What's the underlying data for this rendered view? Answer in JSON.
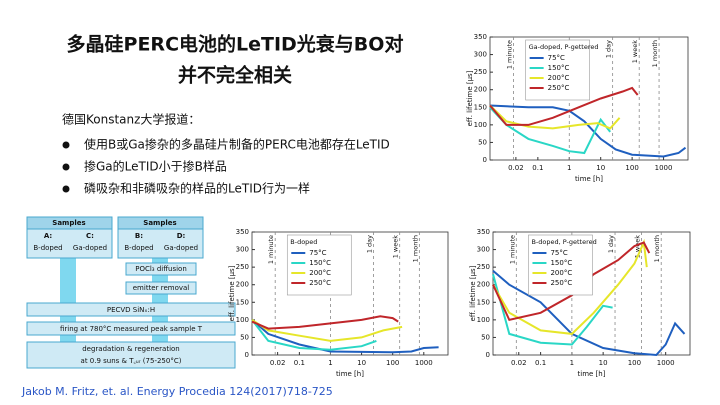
{
  "title_lines": [
    "多晶硅PERC电池的LeTID光衰与BO对",
    "并不完全相关"
  ],
  "intro": "德国Konstanz大学报道：",
  "bullets": [
    "使用B或Ga掺杂的多晶硅片制备的PERC电池都存在LeTID",
    "掺Ga的LeTID小于掺B样品",
    "磷吸杂和非磷吸杂的样品的LeTID行为一样"
  ],
  "source": "Jakob M. Fritz, et. al. Energy Procedia 124(2017)718-725",
  "flowchart": {
    "groups": [
      {
        "title": "Samples",
        "left": "A:",
        "right": "C:",
        "left_sub": "B-doped",
        "right_sub": "Ga-doped"
      },
      {
        "title": "Samples",
        "left": "B:",
        "right": "D:",
        "left_sub": "B-doped",
        "right_sub": "Ga-doped"
      }
    ],
    "group_steps": [
      "POCl₃ diffusion",
      "emitter removal"
    ],
    "steps": [
      "PECVD SiNₓ:H",
      "firing at 780°C measured peak sample T"
    ],
    "last_step": [
      "degradation & regeneration",
      "at 0.9 suns & T꜀ᵤᵣ (75-250°C)"
    ]
  },
  "chart_data": [
    {
      "type": "line",
      "legend_title": "Ga-doped, P-gettered",
      "legend": "upper left",
      "x_label": "time [h]",
      "y_label": "eff. lifetime [µs]",
      "log_x": true,
      "xlim": [
        0.003,
        6000
      ],
      "xticks": [
        0.02,
        0.1,
        1,
        10,
        100,
        1000
      ],
      "ylim": [
        0,
        350
      ],
      "yticks": [
        0,
        50,
        100,
        150,
        200,
        250,
        300,
        350
      ],
      "markers": [
        {
          "x": 0.0167,
          "label": "1 minute"
        },
        {
          "x": 1,
          "label": "1 hour"
        },
        {
          "x": 24,
          "label": "1 day"
        },
        {
          "x": 168,
          "label": "1 week"
        },
        {
          "x": 720,
          "label": "1 month"
        }
      ],
      "series": [
        {
          "name": "75°C",
          "color": "#1f5fbf",
          "x": [
            0.003,
            0.05,
            0.3,
            1,
            3,
            10,
            30,
            100,
            1000,
            3000,
            5000
          ],
          "values": [
            155,
            150,
            150,
            140,
            110,
            60,
            30,
            15,
            10,
            20,
            35
          ]
        },
        {
          "name": "150°C",
          "color": "#2ad7c6",
          "x": [
            0.003,
            0.01,
            0.05,
            0.3,
            1,
            3,
            10,
            20
          ],
          "values": [
            150,
            100,
            60,
            40,
            25,
            20,
            115,
            80
          ]
        },
        {
          "name": "200°C",
          "color": "#e6e62a",
          "x": [
            0.003,
            0.01,
            0.05,
            0.3,
            2,
            8,
            20,
            40
          ],
          "values": [
            155,
            110,
            95,
            90,
            100,
            105,
            90,
            120
          ]
        },
        {
          "name": "250°C",
          "color": "#c0262a",
          "x": [
            0.003,
            0.01,
            0.05,
            0.3,
            2,
            10,
            50,
            100,
            150
          ],
          "values": [
            155,
            100,
            100,
            120,
            150,
            175,
            195,
            205,
            185
          ]
        }
      ]
    },
    {
      "type": "line",
      "legend_title": "B-doped",
      "legend": "upper left",
      "x_label": "time [h]",
      "y_label": "eff. lifetime [µs]",
      "log_x": true,
      "xlim": [
        0.003,
        6000
      ],
      "xticks": [
        0.02,
        0.1,
        1,
        10,
        100,
        1000
      ],
      "ylim": [
        0,
        350
      ],
      "yticks": [
        0,
        50,
        100,
        150,
        200,
        250,
        300,
        350
      ],
      "markers": [
        {
          "x": 0.0167,
          "label": "1 minute"
        },
        {
          "x": 1,
          "label": "1 hour"
        },
        {
          "x": 24,
          "label": "1 day"
        },
        {
          "x": 168,
          "label": "1 week"
        },
        {
          "x": 720,
          "label": "1 month"
        }
      ],
      "series": [
        {
          "name": "75°C",
          "color": "#1f5fbf",
          "x": [
            0.003,
            0.01,
            0.1,
            1,
            100,
            400,
            1000,
            3000
          ],
          "values": [
            100,
            60,
            30,
            10,
            8,
            10,
            20,
            22
          ]
        },
        {
          "name": "150°C",
          "color": "#2ad7c6",
          "x": [
            0.003,
            0.01,
            0.1,
            1,
            10,
            30
          ],
          "values": [
            100,
            40,
            20,
            15,
            25,
            40
          ]
        },
        {
          "name": "200°C",
          "color": "#e6e62a",
          "x": [
            0.003,
            0.01,
            0.1,
            1,
            10,
            50,
            200
          ],
          "values": [
            100,
            70,
            55,
            40,
            50,
            70,
            80
          ]
        },
        {
          "name": "250°C",
          "color": "#c0262a",
          "x": [
            0.003,
            0.01,
            0.1,
            1,
            10,
            40,
            100,
            150
          ],
          "values": [
            95,
            75,
            80,
            90,
            100,
            110,
            105,
            95
          ]
        }
      ]
    },
    {
      "type": "line",
      "legend_title": "B-doped, P-gettered",
      "legend": "upper left",
      "x_label": "time [h]",
      "y_label": "eff. lifetime [µs]",
      "log_x": true,
      "xlim": [
        0.003,
        6000
      ],
      "xticks": [
        0.02,
        0.1,
        1,
        10,
        100,
        1000
      ],
      "ylim": [
        0,
        350
      ],
      "yticks": [
        0,
        50,
        100,
        150,
        200,
        250,
        300,
        350
      ],
      "markers": [
        {
          "x": 0.0167,
          "label": "1 minute"
        },
        {
          "x": 1,
          "label": "1 hour"
        },
        {
          "x": 24,
          "label": "1 day"
        },
        {
          "x": 168,
          "label": "1 week"
        },
        {
          "x": 720,
          "label": "1 month"
        }
      ],
      "series": [
        {
          "name": "75°C",
          "color": "#1f5fbf",
          "x": [
            0.003,
            0.01,
            0.1,
            1,
            10,
            100,
            500,
            1000,
            2000,
            4000
          ],
          "values": [
            240,
            200,
            150,
            60,
            20,
            5,
            0,
            30,
            90,
            60
          ]
        },
        {
          "name": "150°C",
          "color": "#2ad7c6",
          "x": [
            0.003,
            0.01,
            0.1,
            1,
            3,
            10,
            20
          ],
          "values": [
            230,
            60,
            35,
            30,
            80,
            140,
            135
          ]
        },
        {
          "name": "200°C",
          "color": "#e6e62a",
          "x": [
            0.003,
            0.01,
            0.1,
            1,
            5,
            30,
            100,
            200,
            250
          ],
          "values": [
            200,
            120,
            70,
            60,
            120,
            200,
            260,
            320,
            250
          ]
        },
        {
          "name": "250°C",
          "color": "#c0262a",
          "x": [
            0.003,
            0.01,
            0.1,
            1,
            5,
            30,
            100,
            200,
            300
          ],
          "values": [
            200,
            100,
            120,
            170,
            230,
            270,
            310,
            320,
            290
          ]
        }
      ]
    }
  ]
}
